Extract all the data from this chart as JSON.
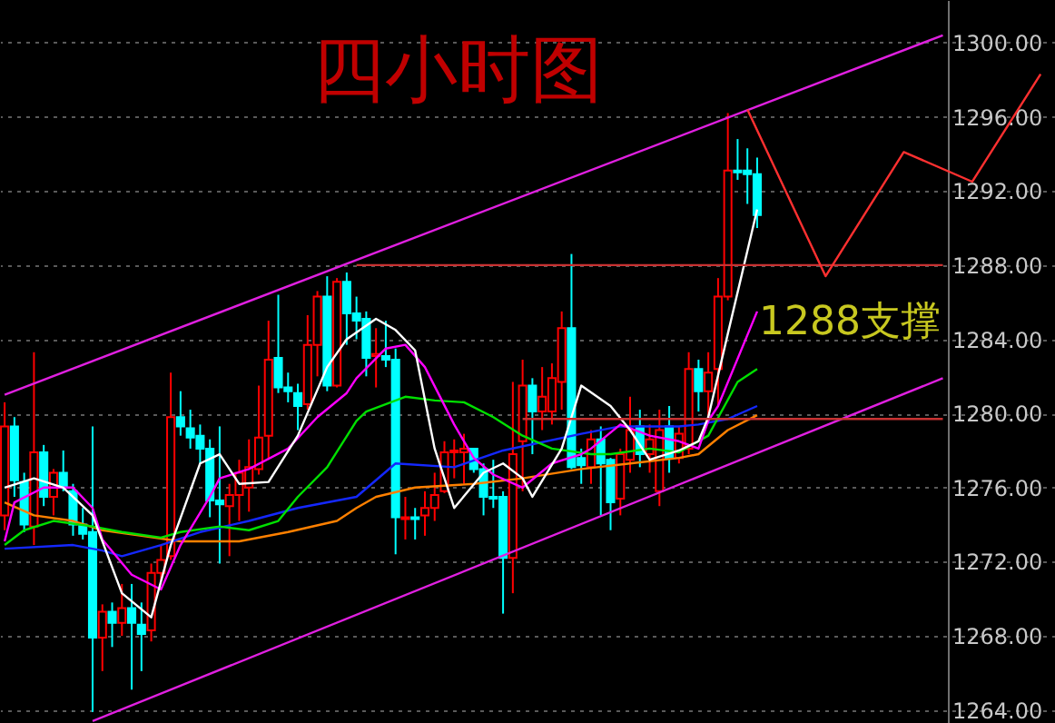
{
  "chart_data": {
    "type": "candlestick",
    "title": "四小时图",
    "categories": [
      null,
      null,
      null,
      null,
      null,
      null,
      null,
      null,
      null,
      null,
      null,
      null,
      null,
      null,
      null,
      null,
      null,
      null,
      null,
      null,
      null,
      null,
      null,
      null,
      null,
      null,
      null,
      null,
      null,
      null,
      null,
      null,
      null,
      null,
      null,
      null,
      null,
      null,
      null,
      null,
      null,
      null,
      null,
      null,
      null,
      null,
      null,
      null,
      null,
      null,
      null,
      null,
      null,
      null,
      null,
      null,
      null,
      null,
      null,
      null,
      null,
      null,
      null,
      null,
      null,
      null,
      null,
      null,
      null,
      null,
      null,
      null,
      null,
      null,
      null,
      null,
      null,
      null,
      null,
      null,
      null,
      null,
      null,
      null,
      null,
      null,
      null,
      null,
      null,
      null,
      null,
      null,
      null,
      null,
      null,
      null,
      null,
      null,
      null,
      null,
      null,
      null,
      null,
      null,
      null,
      null,
      null,
      null
    ],
    "ohlc": [
      [
        1274.5,
        1280.6,
        1273.7,
        1279.3
      ],
      [
        1279.3,
        1279.8,
        1275.5,
        1276.4
      ],
      [
        1276.3,
        1276.8,
        1273.6,
        1274.0
      ],
      [
        1273.9,
        1283.3,
        1272.9,
        1277.9
      ],
      [
        1277.9,
        1278.3,
        1275.0,
        1275.5
      ],
      [
        1275.5,
        1277.0,
        1274.5,
        1276.8
      ],
      [
        1276.8,
        1278.0,
        1275.8,
        1276.0
      ],
      [
        1275.8,
        1276.2,
        1273.4,
        1274.0
      ],
      [
        1274.0,
        1274.9,
        1273.2,
        1273.5
      ],
      [
        1273.6,
        1279.3,
        1263.9,
        1267.9
      ],
      [
        1267.9,
        1269.7,
        1266.1,
        1269.3
      ],
      [
        1269.3,
        1269.8,
        1267.4,
        1268.7
      ],
      [
        1268.7,
        1270.8,
        1268.0,
        1269.5
      ],
      [
        1269.5,
        1270.8,
        1265.1,
        1268.7
      ],
      [
        1268.6,
        1269.8,
        1266.1,
        1268.1
      ],
      [
        1268.3,
        1271.9,
        1267.7,
        1271.4
      ],
      [
        1271.4,
        1272.9,
        1271.0,
        1272.1
      ],
      [
        1272.3,
        1282.2,
        1272.1,
        1279.8
      ],
      [
        1279.8,
        1281.2,
        1278.8,
        1279.3
      ],
      [
        1279.2,
        1280.2,
        1278.1,
        1278.7
      ],
      [
        1278.8,
        1279.4,
        1277.3,
        1278.1
      ],
      [
        1278.1,
        1278.6,
        1274.4,
        1275.3
      ],
      [
        1275.3,
        1279.3,
        1271.9,
        1275.1
      ],
      [
        1275.0,
        1276.2,
        1272.3,
        1275.6
      ],
      [
        1275.6,
        1277.5,
        1274.2,
        1276.8
      ],
      [
        1276.0,
        1278.6,
        1274.7,
        1277.1
      ],
      [
        1277.0,
        1281.5,
        1276.7,
        1278.7
      ],
      [
        1278.8,
        1285.0,
        1277.5,
        1282.9
      ],
      [
        1283.0,
        1286.4,
        1281.1,
        1281.4
      ],
      [
        1281.4,
        1282.2,
        1280.6,
        1281.2
      ],
      [
        1281.1,
        1281.6,
        1279.1,
        1280.4
      ],
      [
        1280.5,
        1285.3,
        1280.2,
        1283.7
      ],
      [
        1283.7,
        1286.6,
        1282.0,
        1286.3
      ],
      [
        1286.3,
        1287.4,
        1281.2,
        1281.5
      ],
      [
        1281.5,
        1287.3,
        1281.4,
        1287.1
      ],
      [
        1287.1,
        1287.6,
        1283.7,
        1285.4
      ],
      [
        1285.4,
        1286.3,
        1284.0,
        1285.0
      ],
      [
        1285.1,
        1285.5,
        1282.0,
        1283.0
      ],
      [
        1283.1,
        1284.6,
        1281.4,
        1283.2
      ],
      [
        1283.1,
        1285.0,
        1282.5,
        1282.9
      ],
      [
        1282.9,
        1283.5,
        1272.4,
        1274.4
      ],
      [
        1274.3,
        1275.5,
        1273.2,
        1274.4
      ],
      [
        1274.4,
        1274.9,
        1273.2,
        1274.3
      ],
      [
        1274.5,
        1275.8,
        1273.4,
        1274.9
      ],
      [
        1274.9,
        1276.8,
        1274.2,
        1275.6
      ],
      [
        1275.8,
        1278.5,
        1275.7,
        1277.9
      ],
      [
        1277.9,
        1278.6,
        1276.5,
        1278.0
      ],
      [
        1277.9,
        1278.9,
        1276.2,
        1278.1
      ],
      [
        1278.1,
        1278.1,
        1276.8,
        1277.0
      ],
      [
        1277.0,
        1277.3,
        1274.5,
        1275.5
      ],
      [
        1275.5,
        1277.5,
        1274.9,
        1275.4
      ],
      [
        1275.5,
        1275.8,
        1269.2,
        1272.2
      ],
      [
        1272.2,
        1281.7,
        1270.3,
        1277.8
      ],
      [
        1278.5,
        1282.9,
        1275.8,
        1281.5
      ],
      [
        1281.5,
        1281.9,
        1277.8,
        1280.1
      ],
      [
        1280.1,
        1282.5,
        1279.1,
        1280.9
      ],
      [
        1280.1,
        1282.7,
        1279.4,
        1281.9
      ],
      [
        1281.7,
        1285.5,
        1280.2,
        1284.6
      ],
      [
        1284.6,
        1288.6,
        1277.0,
        1277.1
      ],
      [
        1277.6,
        1278.1,
        1276.2,
        1277.2
      ],
      [
        1277.1,
        1279.1,
        1276.2,
        1278.6
      ],
      [
        1278.6,
        1279.3,
        1274.5,
        1277.3
      ],
      [
        1277.5,
        1277.6,
        1273.7,
        1275.2
      ],
      [
        1275.4,
        1278.1,
        1274.5,
        1277.8
      ],
      [
        1277.5,
        1280.9,
        1276.8,
        1279.1
      ],
      [
        1279.3,
        1280.2,
        1277.1,
        1277.8
      ],
      [
        1277.8,
        1279.4,
        1276.8,
        1278.6
      ],
      [
        1275.8,
        1280.2,
        1275.0,
        1279.1
      ],
      [
        1279.3,
        1280.4,
        1276.8,
        1277.6
      ],
      [
        1277.6,
        1279.3,
        1277.3,
        1278.9
      ],
      [
        1278.1,
        1283.3,
        1277.8,
        1282.4
      ],
      [
        1282.4,
        1282.9,
        1280.1,
        1281.2
      ],
      [
        1281.2,
        1283.3,
        1279.8,
        1282.2
      ],
      [
        1282.4,
        1287.3,
        1280.4,
        1286.3
      ],
      [
        1286.3,
        1296.2,
        1286.1,
        1293.1
      ],
      [
        1293.1,
        1294.8,
        1292.6,
        1293.0
      ],
      [
        1293.1,
        1294.3,
        1291.3,
        1292.9
      ],
      [
        1292.9,
        1293.8,
        1290.0,
        1290.7
      ],
      null,
      null,
      null,
      null,
      null,
      null,
      null,
      null,
      null,
      null,
      null,
      null,
      null,
      null,
      null,
      null,
      null,
      null,
      null,
      null,
      null,
      null,
      null,
      null,
      null,
      null,
      null,
      null,
      null,
      null
    ],
    "series": [
      {
        "type": "line",
        "color": "#ff8000",
        "values": [
          1275.2,
          null,
          null,
          1274.5,
          null,
          null,
          null,
          1274.2,
          null,
          null,
          1273.7,
          null,
          null,
          null,
          1273.4,
          null,
          null,
          null,
          1273.1,
          null,
          null,
          null,
          null,
          null,
          1273.1,
          null,
          null,
          null,
          null,
          1273.6,
          null,
          null,
          null,
          null,
          1274.2,
          null,
          1274.9,
          null,
          1275.5,
          null,
          null,
          null,
          1276,
          null,
          null,
          null,
          null,
          null,
          1276.2,
          null,
          null,
          null,
          null,
          1276.5,
          null,
          null,
          null,
          null,
          null,
          1277,
          null,
          null,
          null,
          null,
          1277.3,
          null,
          null,
          null,
          null,
          1277.6,
          null,
          1277.8,
          null,
          null,
          1279.1,
          null,
          null,
          1279.9,
          null,
          null,
          null,
          null,
          null,
          null,
          null,
          null,
          null,
          null,
          null,
          null,
          null,
          null,
          null,
          null,
          null,
          null,
          null,
          null,
          null,
          null,
          null,
          null,
          null,
          null,
          null,
          null,
          null,
          null
        ]
      },
      {
        "type": "line",
        "color": "#1428ff",
        "values": [
          1272.7,
          null,
          null,
          null,
          null,
          null,
          null,
          1272.9,
          null,
          null,
          1272.6,
          null,
          1272.3,
          null,
          null,
          null,
          1272.9,
          null,
          null,
          null,
          1273.6,
          null,
          null,
          null,
          null,
          1274.2,
          null,
          null,
          null,
          null,
          1274.9,
          null,
          null,
          null,
          null,
          null,
          1275.5,
          null,
          null,
          null,
          1277.3,
          null,
          null,
          null,
          null,
          null,
          1277.1,
          null,
          null,
          null,
          null,
          1278,
          null,
          null,
          null,
          null,
          null,
          null,
          null,
          1278.9,
          null,
          null,
          null,
          1279.3,
          null,
          null,
          null,
          null,
          null,
          1279.3,
          null,
          1279.4,
          null,
          null,
          1279.7,
          null,
          null,
          1280.4,
          null,
          null,
          null,
          null,
          null,
          null,
          null,
          null,
          null,
          null,
          null,
          null,
          null,
          null,
          null,
          null,
          null,
          null,
          null,
          null,
          null,
          null,
          null,
          null,
          null,
          null,
          null,
          null,
          null,
          null
        ]
      },
      {
        "type": "line",
        "color": "#00e000",
        "values": [
          1272.9,
          null,
          1273.7,
          null,
          null,
          1274.2,
          null,
          null,
          null,
          1273.9,
          null,
          null,
          1273.6,
          null,
          null,
          null,
          1273.3,
          null,
          1273.6,
          null,
          null,
          null,
          1273.9,
          null,
          null,
          1273.7,
          null,
          null,
          1274.2,
          null,
          1275.5,
          null,
          null,
          1277.1,
          null,
          null,
          1279.6,
          1280.1,
          null,
          null,
          null,
          1280.9,
          null,
          null,
          1280.7,
          null,
          null,
          1280.6,
          null,
          null,
          1279.8,
          null,
          null,
          1278.8,
          null,
          null,
          1278.1,
          null,
          null,
          null,
          1277.8,
          null,
          1277.8,
          null,
          null,
          null,
          1278.1,
          null,
          null,
          1277.9,
          null,
          null,
          1278.8,
          null,
          null,
          1281.7,
          null,
          1282.4,
          null,
          null,
          null,
          null,
          null,
          null,
          null,
          null,
          null,
          null,
          null,
          null,
          null,
          null,
          null,
          null,
          null,
          null,
          null,
          null,
          null,
          null,
          null,
          null,
          null,
          null,
          null,
          null,
          null,
          null
        ]
      },
      {
        "type": "line",
        "color": "#ff00ff",
        "values": [
          1273.1,
          1275.2,
          null,
          null,
          1276,
          null,
          null,
          1276,
          null,
          1274.9,
          1273.2,
          null,
          null,
          1271.3,
          null,
          null,
          1270.5,
          null,
          1272.9,
          null,
          null,
          1275.5,
          1276.5,
          null,
          null,
          1277,
          null,
          null,
          null,
          1278.1,
          null,
          null,
          1279.8,
          null,
          null,
          1281.1,
          1281.9,
          null,
          null,
          1283.5,
          null,
          1283.7,
          null,
          1282.5,
          null,
          null,
          1279.4,
          null,
          1277.6,
          null,
          1276.7,
          null,
          null,
          1276,
          null,
          null,
          1277.3,
          null,
          null,
          1277.8,
          1278.1,
          null,
          null,
          1279.4,
          null,
          null,
          1278.8,
          null,
          null,
          1278.5,
          null,
          1278.1,
          1279.6,
          1280.4,
          null,
          null,
          null,
          1285.5,
          null,
          null,
          null,
          null,
          null,
          null,
          null,
          null,
          null,
          null,
          null,
          null,
          null,
          null,
          null,
          null,
          null,
          null,
          null,
          null,
          null,
          null,
          null,
          null,
          null,
          null,
          null,
          null,
          null,
          null
        ]
      },
      {
        "type": "line",
        "color": "#ffffff",
        "values": [
          1276,
          null,
          null,
          1276.5,
          null,
          null,
          1276,
          null,
          null,
          1274.5,
          null,
          null,
          1270.3,
          null,
          null,
          1269,
          null,
          1272.9,
          null,
          null,
          1277.3,
          null,
          1277.8,
          null,
          1276.2,
          null,
          null,
          1276.3,
          null,
          null,
          1278.8,
          null,
          null,
          1282.5,
          null,
          1284,
          null,
          null,
          1285.1,
          null,
          1284.5,
          null,
          1283.4,
          null,
          1278.1,
          null,
          1274.9,
          null,
          null,
          1276.8,
          null,
          1277.3,
          null,
          1276.5,
          1275.5,
          null,
          null,
          1278.1,
          null,
          1281.5,
          null,
          null,
          1280.4,
          null,
          1279.1,
          null,
          1277.5,
          null,
          null,
          1278,
          null,
          1278.5,
          1279.8,
          null,
          1284.3,
          null,
          null,
          1291,
          null,
          null,
          null,
          null,
          null,
          null,
          null,
          null,
          null,
          null,
          null,
          null,
          null,
          null,
          null,
          null,
          null,
          null,
          null,
          null,
          null,
          null,
          null,
          null,
          null,
          null,
          null,
          null,
          null,
          null
        ]
      },
      {
        "type": "line",
        "color": "#e020e0",
        "values": [
          1281.0,
          null,
          null,
          null,
          null,
          null,
          null,
          null,
          null,
          null,
          null,
          null,
          null,
          null,
          null,
          null,
          null,
          null,
          null,
          null,
          null,
          null,
          null,
          null,
          null,
          null,
          null,
          null,
          null,
          null,
          null,
          null,
          null,
          null,
          null,
          null,
          null,
          null,
          null,
          null,
          null,
          null,
          null,
          null,
          null,
          null,
          null,
          null,
          null,
          null,
          null,
          null,
          null,
          null,
          null,
          null,
          null,
          null,
          null,
          null,
          null,
          null,
          null,
          null,
          null,
          null,
          null,
          null,
          null,
          null,
          null,
          null,
          null,
          null,
          null,
          null,
          null,
          null,
          null,
          null,
          null,
          null,
          null,
          null,
          null,
          null,
          null,
          null,
          null,
          null,
          null,
          null,
          null,
          null,
          null,
          null,
          1300.4,
          null,
          null,
          null,
          null,
          null,
          null,
          null,
          null,
          null,
          null,
          null
        ]
      },
      {
        "type": "line",
        "color": "#e020e0",
        "values": [
          null,
          null,
          null,
          null,
          null,
          null,
          null,
          null,
          null,
          1263.4,
          null,
          null,
          null,
          null,
          null,
          null,
          null,
          null,
          null,
          null,
          null,
          null,
          null,
          null,
          null,
          null,
          null,
          null,
          null,
          null,
          null,
          null,
          null,
          null,
          null,
          null,
          null,
          null,
          null,
          null,
          null,
          null,
          null,
          null,
          null,
          null,
          null,
          null,
          null,
          null,
          null,
          null,
          null,
          null,
          null,
          null,
          null,
          null,
          null,
          null,
          null,
          null,
          null,
          null,
          null,
          null,
          null,
          null,
          null,
          null,
          null,
          null,
          null,
          null,
          null,
          null,
          null,
          null,
          null,
          null,
          null,
          null,
          null,
          null,
          null,
          null,
          null,
          null,
          null,
          null,
          null,
          null,
          null,
          null,
          null,
          null,
          1281.9,
          null,
          null,
          null,
          null,
          null,
          null,
          null,
          null,
          null,
          null,
          null
        ]
      },
      {
        "type": "line",
        "color": "#c83232",
        "values": [
          null,
          null,
          null,
          null,
          null,
          null,
          null,
          null,
          null,
          null,
          null,
          null,
          null,
          null,
          null,
          null,
          null,
          null,
          null,
          null,
          null,
          null,
          null,
          null,
          null,
          null,
          null,
          null,
          null,
          null,
          null,
          null,
          null,
          null,
          null,
          null,
          1288,
          null,
          null,
          null,
          null,
          null,
          null,
          null,
          null,
          null,
          null,
          null,
          null,
          null,
          null,
          null,
          null,
          null,
          null,
          null,
          null,
          null,
          null,
          null,
          null,
          null,
          null,
          null,
          null,
          null,
          null,
          null,
          null,
          null,
          null,
          null,
          null,
          null,
          null,
          null,
          null,
          null,
          null,
          null,
          null,
          null,
          null,
          null,
          null,
          null,
          null,
          null,
          null,
          null,
          null,
          null,
          null,
          null,
          null,
          null,
          1288,
          null,
          null,
          null,
          null,
          null,
          null,
          null,
          null,
          null,
          null,
          null
        ]
      },
      {
        "type": "line",
        "color": "#c83232",
        "values": [
          null,
          null,
          null,
          null,
          null,
          null,
          null,
          null,
          null,
          null,
          null,
          null,
          null,
          null,
          null,
          null,
          null,
          null,
          null,
          null,
          null,
          null,
          null,
          null,
          null,
          null,
          null,
          null,
          null,
          null,
          null,
          null,
          null,
          null,
          null,
          null,
          null,
          null,
          null,
          null,
          null,
          null,
          null,
          null,
          null,
          null,
          null,
          null,
          null,
          null,
          null,
          null,
          null,
          1279.7,
          null,
          null,
          null,
          null,
          null,
          null,
          null,
          null,
          null,
          null,
          null,
          null,
          null,
          null,
          null,
          null,
          null,
          null,
          null,
          null,
          null,
          null,
          null,
          null,
          null,
          null,
          null,
          null,
          null,
          null,
          null,
          null,
          null,
          null,
          null,
          null,
          null,
          null,
          null,
          null,
          null,
          null,
          1279.7,
          null,
          null,
          null,
          null,
          null,
          null,
          null,
          null,
          null,
          null,
          null
        ]
      },
      {
        "type": "line",
        "color": "#ff3030",
        "values": [
          null,
          null,
          null,
          null,
          null,
          null,
          null,
          null,
          null,
          null,
          null,
          null,
          null,
          null,
          null,
          null,
          null,
          null,
          null,
          null,
          null,
          null,
          null,
          null,
          null,
          null,
          null,
          null,
          null,
          null,
          null,
          null,
          null,
          null,
          null,
          null,
          null,
          null,
          null,
          null,
          null,
          null,
          null,
          null,
          null,
          null,
          null,
          null,
          null,
          null,
          null,
          null,
          null,
          null,
          null,
          null,
          null,
          null,
          null,
          null,
          null,
          null,
          null,
          null,
          null,
          null,
          null,
          null,
          null,
          null,
          null,
          null,
          null,
          null,
          null,
          null,
          1296.4,
          null,
          null,
          null,
          null,
          null,
          null,
          null,
          1287.4,
          null,
          null,
          null,
          null,
          null,
          null,
          null,
          1294.1,
          null,
          null,
          null,
          null,
          null,
          null,
          1292.5,
          null,
          null,
          null,
          null,
          null,
          null,
          1298.3,
          null
        ]
      }
    ],
    "ylim": [
      1263.3,
      1302.3
    ],
    "yticks": [
      {
        "value": 1264,
        "label": "1264.00"
      },
      {
        "value": 1268,
        "label": "1268.00"
      },
      {
        "value": 1272,
        "label": "1272.00"
      },
      {
        "value": 1276,
        "label": "1276.00"
      },
      {
        "value": 1280,
        "label": "1280.00"
      },
      {
        "value": 1284,
        "label": "1284.00"
      },
      {
        "value": 1288,
        "label": "1288.00"
      },
      {
        "value": 1292,
        "label": "1292.00"
      },
      {
        "value": 1296,
        "label": "1296.00"
      },
      {
        "value": 1300,
        "label": "1300.00"
      }
    ],
    "grid": "y",
    "tick_labels": "y",
    "annotations": [
      "1288支撑"
    ]
  }
}
